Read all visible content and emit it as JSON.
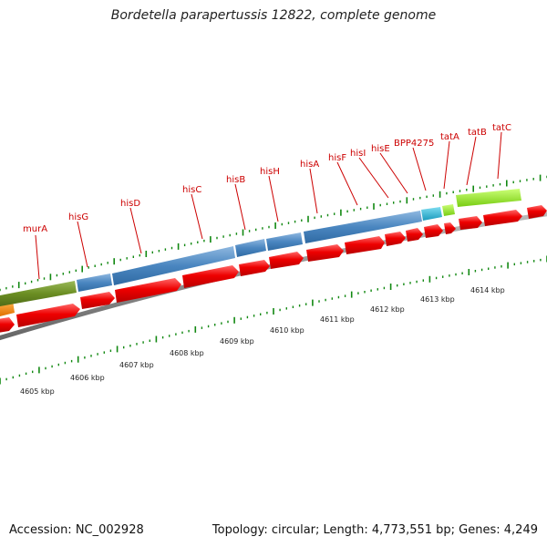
{
  "title": "Bordetella parapertussis 12822, complete genome",
  "footer": {
    "accession": "Accession: NC_002928",
    "summary": "Topology: circular; Length: 4,773,551 bp; Genes: 4,249"
  },
  "colors": {
    "cds": "#ee0000",
    "his_operon": "#4a86c0",
    "murA": "#6b8e23",
    "orange_feature": "#ff8c00",
    "cyan_feature": "#22b8d6",
    "lime_feature": "#99ee33",
    "backbone": "#808080",
    "tick": "#118811",
    "gene_label": "#cc0000"
  },
  "gene_labels": [
    "murA",
    "hisG",
    "hisD",
    "hisC",
    "hisB",
    "hisH",
    "hisA",
    "hisF",
    "hisI",
    "hisE",
    "BPP4275",
    "tatA",
    "tatB",
    "tatC"
  ],
  "kbp_labels": [
    "4605 kbp",
    "4606 kbp",
    "4607 kbp",
    "4608 kbp",
    "4609 kbp",
    "4610 kbp",
    "4611 kbp",
    "4612 kbp",
    "4613 kbp",
    "4614 kbp"
  ]
}
